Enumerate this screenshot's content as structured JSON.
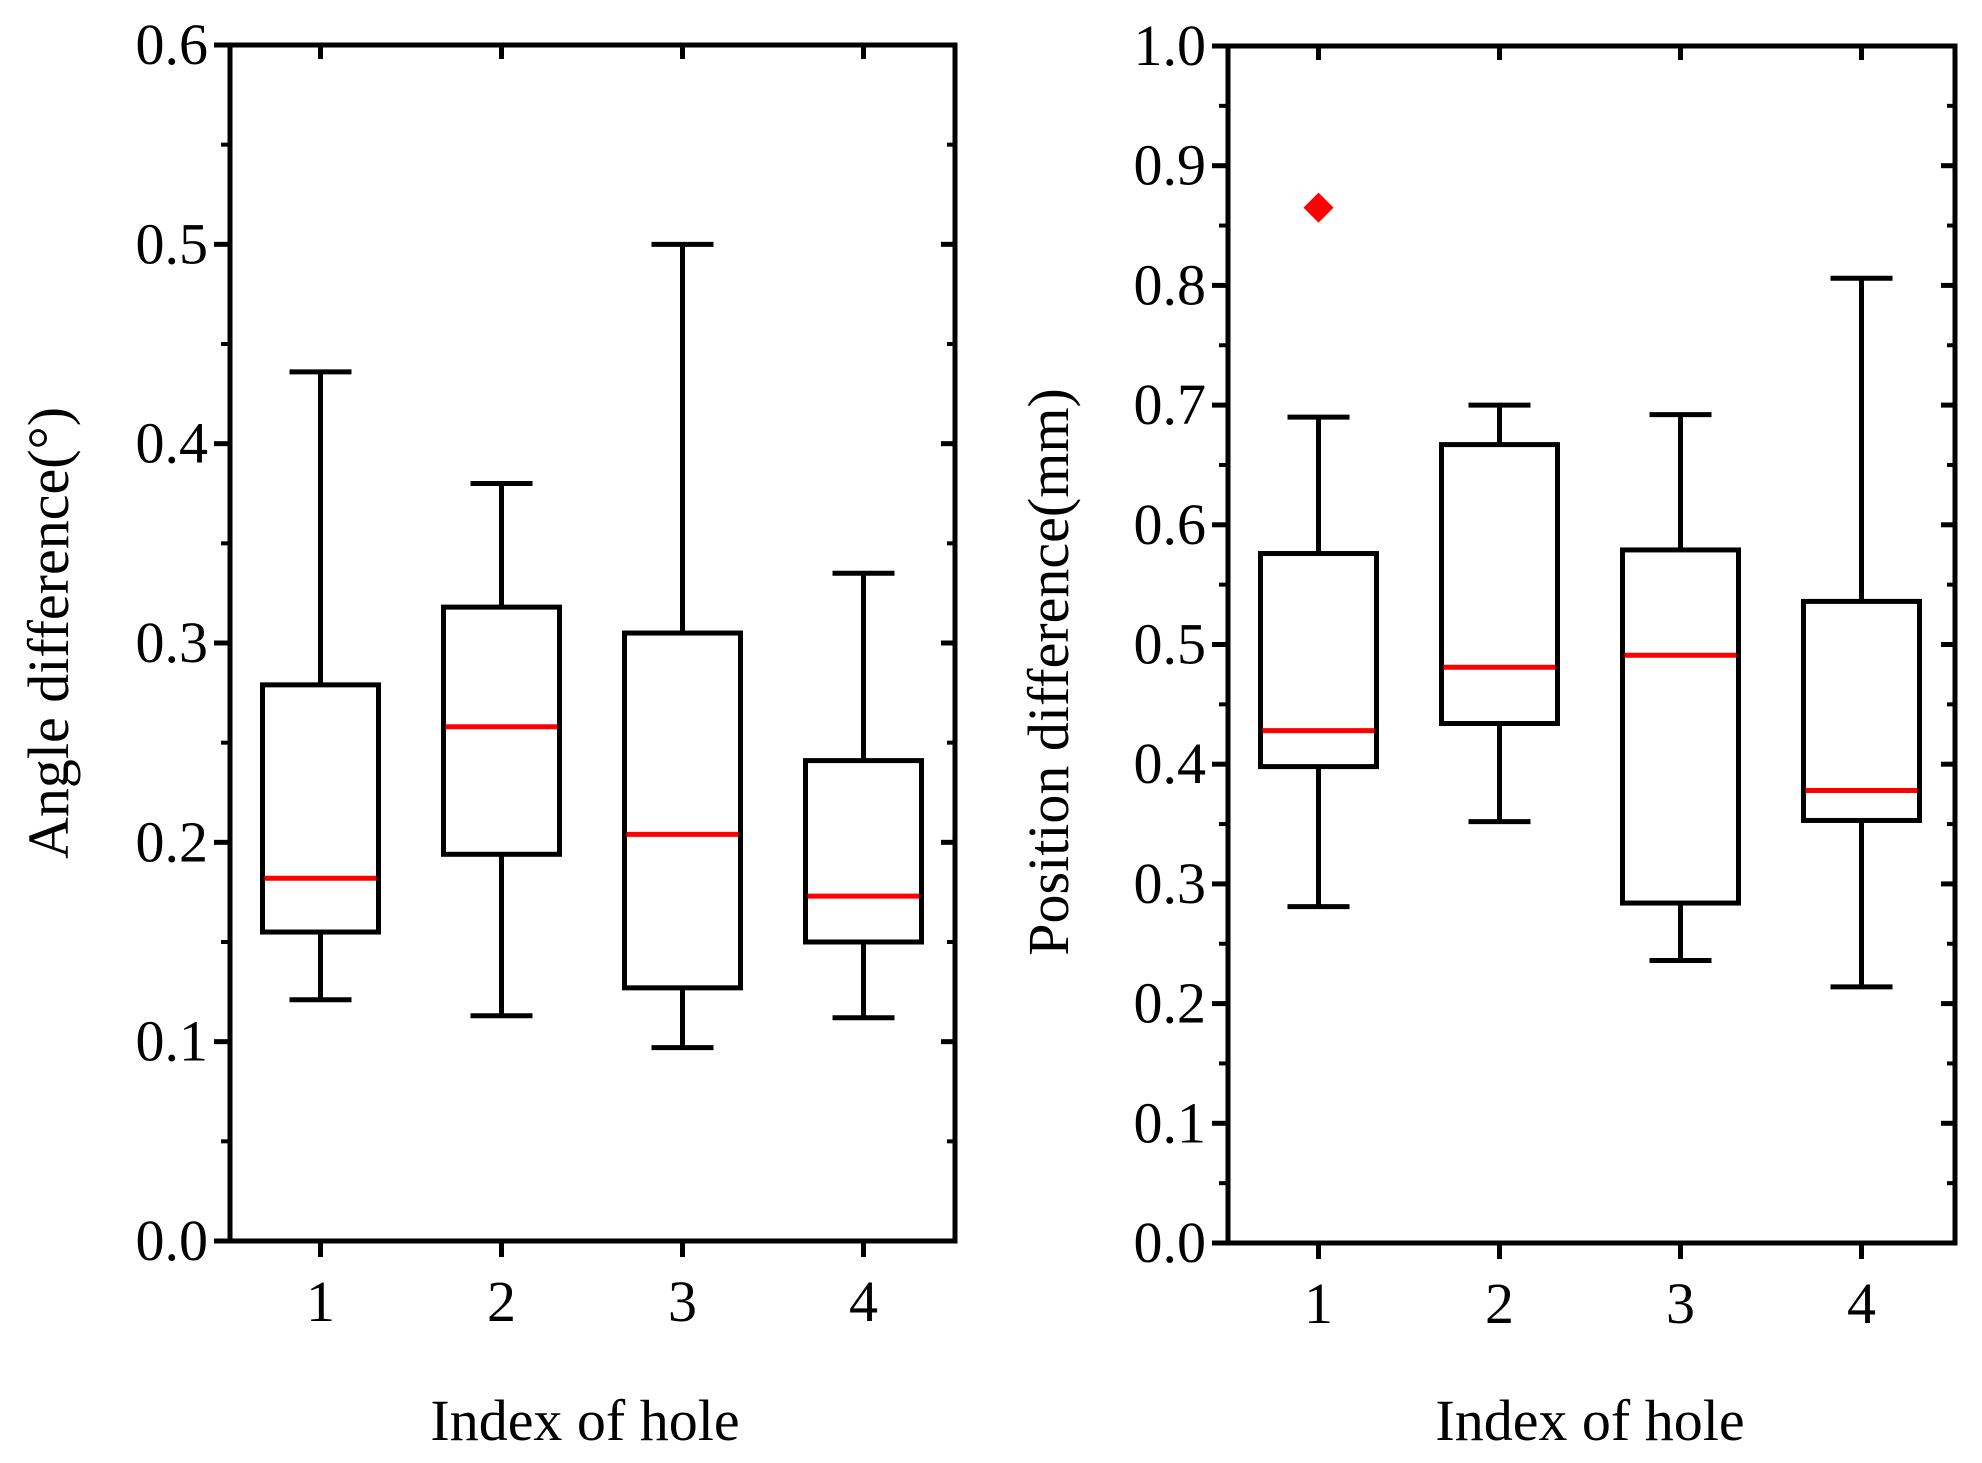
{
  "colors": {
    "box": "#000000",
    "median": "#ff0000",
    "outlier": "#ff0000",
    "background": "#ffffff"
  },
  "chart_data": [
    {
      "type": "box",
      "title": "",
      "xlabel": "Index of hole",
      "ylabel": "Angle difference(°)",
      "categories": [
        "1",
        "2",
        "3",
        "4"
      ],
      "ylim": [
        0.0,
        0.6
      ],
      "yticks": [
        "0.0",
        "0.1",
        "0.2",
        "0.3",
        "0.4",
        "0.5",
        "0.6"
      ],
      "boxes": [
        {
          "category": "1",
          "whisker_low": 0.121,
          "q1": 0.155,
          "median": 0.182,
          "q3": 0.279,
          "whisker_high": 0.436,
          "outliers": []
        },
        {
          "category": "2",
          "whisker_low": 0.113,
          "q1": 0.194,
          "median": 0.258,
          "q3": 0.318,
          "whisker_high": 0.38,
          "outliers": []
        },
        {
          "category": "3",
          "whisker_low": 0.097,
          "q1": 0.127,
          "median": 0.204,
          "q3": 0.305,
          "whisker_high": 0.5,
          "outliers": []
        },
        {
          "category": "4",
          "whisker_low": 0.112,
          "q1": 0.15,
          "median": 0.173,
          "q3": 0.241,
          "whisker_high": 0.335,
          "outliers": []
        }
      ]
    },
    {
      "type": "box",
      "title": "",
      "xlabel": "Index of hole",
      "ylabel": "Position difference(mm)",
      "categories": [
        "1",
        "2",
        "3",
        "4"
      ],
      "ylim": [
        0.0,
        1.0
      ],
      "yticks": [
        "0.0",
        "0.1",
        "0.2",
        "0.3",
        "0.4",
        "0.5",
        "0.6",
        "0.7",
        "0.8",
        "0.9",
        "1.0"
      ],
      "boxes": [
        {
          "category": "1",
          "whisker_low": 0.281,
          "q1": 0.398,
          "median": 0.428,
          "q3": 0.576,
          "whisker_high": 0.69,
          "outliers": [
            0.865
          ]
        },
        {
          "category": "2",
          "whisker_low": 0.352,
          "q1": 0.434,
          "median": 0.481,
          "q3": 0.667,
          "whisker_high": 0.7,
          "outliers": []
        },
        {
          "category": "3",
          "whisker_low": 0.236,
          "q1": 0.284,
          "median": 0.491,
          "q3": 0.579,
          "whisker_high": 0.692,
          "outliers": []
        },
        {
          "category": "4",
          "whisker_low": 0.214,
          "q1": 0.353,
          "median": 0.378,
          "q3": 0.536,
          "whisker_high": 0.806,
          "outliers": []
        }
      ]
    }
  ]
}
